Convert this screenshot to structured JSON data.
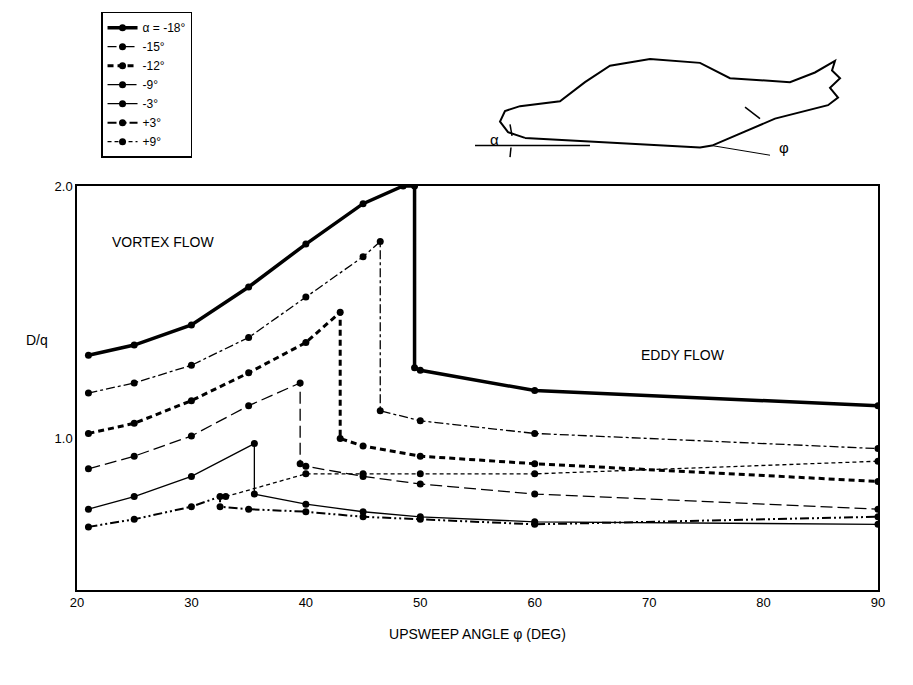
{
  "chart_data": {
    "type": "line",
    "xlabel": "UPSWEEP ANGLE φ (DEG)",
    "ylabel": "D/q",
    "xlim": [
      20,
      90
    ],
    "xticks": [
      20,
      30,
      40,
      50,
      60,
      70,
      80,
      90
    ],
    "ylim": [
      0.4,
      2.0
    ],
    "yticks": [
      {
        "value": 1,
        "label": "1.0"
      },
      {
        "value": 2,
        "label": "2.0"
      }
    ],
    "grid": false,
    "legend": "upper left",
    "annotations": [
      {
        "text": "VORTEX FLOW",
        "x": 27.5,
        "y": 1.78
      },
      {
        "text": "EDDY FLOW",
        "x": 73,
        "y": 1.33
      }
    ],
    "inset_labels": [
      "α",
      "φ"
    ],
    "series": [
      {
        "name": "α = -18°",
        "color": "#000000",
        "line_style": "solid_thick",
        "marker": "circle",
        "x": [
          21,
          25,
          30,
          35,
          40,
          45,
          48.5,
          49.5,
          49.5,
          50,
          60,
          90
        ],
        "values": [
          1.33,
          1.37,
          1.45,
          1.6,
          1.77,
          1.93,
          2.0,
          2.0,
          1.28,
          1.27,
          1.19,
          1.13
        ]
      },
      {
        "name": "-15°",
        "color": "#000000",
        "line_style": "dashdot",
        "marker": "circle",
        "x": [
          21,
          25,
          30,
          35,
          40,
          45,
          46.5,
          46.5,
          50,
          60,
          90
        ],
        "values": [
          1.18,
          1.22,
          1.29,
          1.4,
          1.56,
          1.72,
          1.78,
          1.11,
          1.07,
          1.02,
          0.96
        ]
      },
      {
        "name": "-12°",
        "color": "#000000",
        "line_style": "dash_thick",
        "marker": "circle",
        "x": [
          21,
          25,
          30,
          35,
          40,
          43,
          43,
          45,
          50,
          60,
          90
        ],
        "values": [
          1.02,
          1.06,
          1.15,
          1.26,
          1.38,
          1.5,
          1.0,
          0.97,
          0.93,
          0.9,
          0.83
        ]
      },
      {
        "name": "-9°",
        "color": "#000000",
        "line_style": "longdash",
        "marker": "circle",
        "x": [
          21,
          25,
          30,
          35,
          39.5,
          39.5,
          40,
          45,
          50,
          60,
          90
        ],
        "values": [
          0.88,
          0.93,
          1.01,
          1.13,
          1.22,
          0.9,
          0.89,
          0.85,
          0.82,
          0.78,
          0.72
        ]
      },
      {
        "name": "-3°",
        "color": "#000000",
        "line_style": "solid",
        "marker": "circle",
        "x": [
          21,
          25,
          30,
          35.5,
          35.5,
          40,
          45,
          50,
          60,
          90
        ],
        "values": [
          0.72,
          0.77,
          0.85,
          0.98,
          0.78,
          0.74,
          0.71,
          0.69,
          0.67,
          0.66
        ]
      },
      {
        "name": "+3°",
        "color": "#000000",
        "line_style": "dashdotdot",
        "marker": "circle",
        "x": [
          21,
          25,
          30,
          32.5,
          32.5,
          35,
          40,
          45,
          50,
          60,
          90
        ],
        "values": [
          0.65,
          0.68,
          0.73,
          0.77,
          0.73,
          0.72,
          0.71,
          0.69,
          0.68,
          0.66,
          0.69
        ]
      },
      {
        "name": "+9°",
        "color": "#000000",
        "line_style": "dot",
        "marker": "circle",
        "x": [
          33,
          40,
          45,
          50,
          60,
          90
        ],
        "values": [
          0.77,
          0.86,
          0.86,
          0.86,
          0.86,
          0.91
        ]
      }
    ]
  }
}
